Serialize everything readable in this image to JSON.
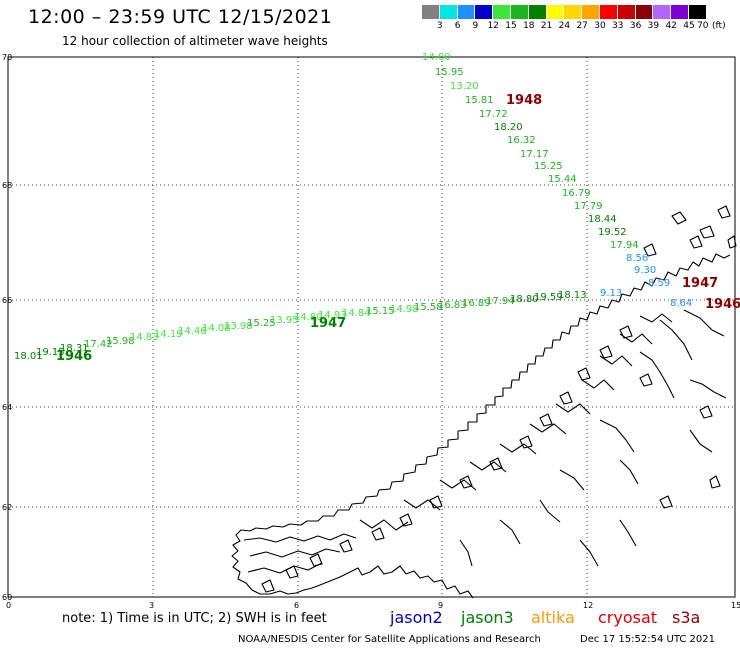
{
  "header": {
    "title": "12:00 – 23:59 UTC 12/15/2021",
    "subtitle": "12 hour collection of altimeter wave heights"
  },
  "legend": {
    "unit_label": "(ft)",
    "bins": [
      {
        "color": "#808080",
        "label": "3"
      },
      {
        "color": "#00e5e5",
        "label": "6"
      },
      {
        "color": "#1e90ff",
        "label": "9"
      },
      {
        "color": "#0000cd",
        "label": "12"
      },
      {
        "color": "#3ce63c",
        "label": "15"
      },
      {
        "color": "#1eb41e",
        "label": "18"
      },
      {
        "color": "#008200",
        "label": "21"
      },
      {
        "color": "#ffff00",
        "label": "24"
      },
      {
        "color": "#ffd700",
        "label": "27"
      },
      {
        "color": "#ffa500",
        "label": "30"
      },
      {
        "color": "#ff0000",
        "label": "33"
      },
      {
        "color": "#c80000",
        "label": "36"
      },
      {
        "color": "#8b0000",
        "label": "39"
      },
      {
        "color": "#b266ff",
        "label": "42"
      },
      {
        "color": "#7b00d4",
        "label": "45"
      },
      {
        "color": "#000000",
        "label": "70"
      }
    ]
  },
  "axes": {
    "lat_ticks": [
      "70",
      "68",
      "66",
      "64",
      "62",
      "60"
    ],
    "lon_ticks": [
      "0",
      "3",
      "6",
      "9",
      "12",
      "15"
    ]
  },
  "track_a": {
    "name_label": "1948",
    "name_label_color": "#8b0000",
    "points": [
      {
        "v": "14.00",
        "c": "#3ce63c"
      },
      {
        "v": "15.95",
        "c": "#1eb41e"
      },
      {
        "v": "13.20",
        "c": "#3ce63c"
      },
      {
        "v": "15.81",
        "c": "#1eb41e"
      },
      {
        "v": "17.72",
        "c": "#1eb41e"
      },
      {
        "v": "18.20",
        "c": "#008200"
      },
      {
        "v": "16.32",
        "c": "#1eb41e"
      },
      {
        "v": "17.17",
        "c": "#1eb41e"
      },
      {
        "v": "15.25",
        "c": "#1eb41e"
      },
      {
        "v": "15.44",
        "c": "#1eb41e"
      },
      {
        "v": "16.79",
        "c": "#1eb41e"
      },
      {
        "v": "17.79",
        "c": "#1eb41e"
      },
      {
        "v": "18.44",
        "c": "#008200"
      },
      {
        "v": "19.52",
        "c": "#008200"
      },
      {
        "v": "17.94",
        "c": "#1eb41e"
      },
      {
        "v": "8.56",
        "c": "#1e90ff"
      },
      {
        "v": "9.30",
        "c": "#1e90ff"
      },
      {
        "v": "8.59",
        "c": "#1e90ff"
      },
      {
        "v": "8.64",
        "c": "#1e90ff"
      }
    ]
  },
  "track_a_tail_labels": [
    {
      "text": "1947",
      "color": "#8b0000"
    },
    {
      "text": "1946",
      "color": "#8b0000"
    }
  ],
  "track_b": {
    "name_labels": [
      "1946",
      "1947"
    ],
    "name_label_color": "#008200",
    "points": [
      {
        "v": "18.01",
        "c": "#008200"
      },
      {
        "v": "19.15",
        "c": "#008200"
      },
      {
        "v": "18.31",
        "c": "#008200"
      },
      {
        "v": "17.42",
        "c": "#1eb41e"
      },
      {
        "v": "15.98",
        "c": "#1eb41e"
      },
      {
        "v": "14.83",
        "c": "#3ce63c"
      },
      {
        "v": "14.19",
        "c": "#3ce63c"
      },
      {
        "v": "14.46",
        "c": "#3ce63c"
      },
      {
        "v": "14.08",
        "c": "#3ce63c"
      },
      {
        "v": "13.98",
        "c": "#3ce63c"
      },
      {
        "v": "15.25",
        "c": "#1eb41e"
      },
      {
        "v": "13.95",
        "c": "#3ce63c"
      },
      {
        "v": "14.80",
        "c": "#3ce63c"
      },
      {
        "v": "14.93",
        "c": "#3ce63c"
      },
      {
        "v": "14.84",
        "c": "#3ce63c"
      },
      {
        "v": "15.15",
        "c": "#1eb41e"
      },
      {
        "v": "14.98",
        "c": "#3ce63c"
      },
      {
        "v": "15.58",
        "c": "#1eb41e"
      },
      {
        "v": "16.83",
        "c": "#1eb41e"
      },
      {
        "v": "16.89",
        "c": "#1eb41e"
      },
      {
        "v": "17.94",
        "c": "#1eb41e"
      },
      {
        "v": "18.80",
        "c": "#008200"
      },
      {
        "v": "19.59",
        "c": "#008200"
      },
      {
        "v": "18.13",
        "c": "#008200"
      },
      {
        "v": "9.13",
        "c": "#1e90ff"
      }
    ]
  },
  "footer": {
    "note": "note: 1) Time is in UTC; 2) SWH is in feet",
    "missions": [
      {
        "name": "jason2",
        "color": "#0000cd"
      },
      {
        "name": "jason3",
        "color": "#008200"
      },
      {
        "name": "altika",
        "color": "#ff9900"
      },
      {
        "name": "cryosat",
        "color": "#e00000"
      },
      {
        "name": "s3a",
        "color": "#8b0000"
      }
    ],
    "credit": "NOAA/NESDIS Center for Satellite Applications and Research",
    "timestamp": "Dec 17 15:52:54 UTC 2021"
  }
}
